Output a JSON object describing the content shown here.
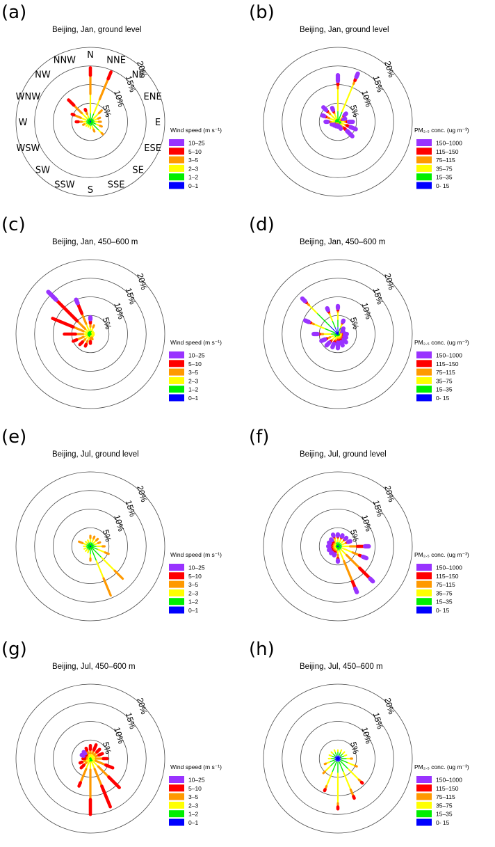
{
  "figure": {
    "compass_labels": [
      "N",
      "NNE",
      "NE",
      "ENE",
      "E",
      "ESE",
      "SE",
      "SSE",
      "S",
      "SSW",
      "SW",
      "WSW",
      "W",
      "WNW",
      "NW",
      "NNW"
    ],
    "ring_labels": [
      "5%",
      "10%",
      "15%",
      "20%"
    ]
  },
  "legends": {
    "wind": {
      "title": "Wind speed (m s⁻¹)",
      "items": [
        "10–25",
        "5–10",
        "3–5",
        "2–3",
        "1–2",
        "0–1"
      ]
    },
    "pm": {
      "title": "PM₂.₅ conc. (ug m⁻³)",
      "items": [
        "150–1000",
        "115–150",
        "75–115",
        "35–75",
        "15–35",
        "0- 15"
      ]
    },
    "colors": [
      "#9933ff",
      "#ff0000",
      "#ff9900",
      "#ffff00",
      "#00ee00",
      "#0000ff"
    ]
  },
  "chart_data": [
    {
      "type": "windrose",
      "label": "(a)",
      "title": "Beijing, Jan, ground level",
      "variable": "wind",
      "rlim": [
        0,
        20
      ],
      "show_compass": true,
      "directions": [
        "N",
        "NNE",
        "NE",
        "ENE",
        "E",
        "ESE",
        "SE",
        "SSE",
        "S",
        "SSW",
        "SW",
        "WSW",
        "W",
        "WNW",
        "NW",
        "NNW"
      ],
      "bins": [
        "0–1",
        "1–2",
        "2–3",
        "3–5",
        "5–10",
        "10–25"
      ],
      "frequencies_percent": [
        [
          0.5,
          2,
          5,
          5,
          2,
          0
        ],
        [
          0.5,
          2,
          4,
          6,
          2,
          0
        ],
        [
          0.3,
          1,
          2,
          1,
          0,
          0
        ],
        [
          0.3,
          1,
          1,
          0.5,
          0,
          0
        ],
        [
          0.3,
          1,
          1,
          0.5,
          0,
          0
        ],
        [
          0.3,
          1.5,
          1,
          0.5,
          0,
          0
        ],
        [
          0.3,
          3,
          1,
          0.5,
          0,
          0
        ],
        [
          0.3,
          1,
          1,
          0.5,
          0,
          0
        ],
        [
          0.3,
          1,
          0.5,
          0,
          0,
          0
        ],
        [
          0.3,
          0.8,
          0.4,
          0,
          0,
          0
        ],
        [
          0.3,
          0.8,
          0.5,
          0,
          0,
          0
        ],
        [
          0.3,
          1,
          0.5,
          0.3,
          0,
          0
        ],
        [
          0.3,
          1,
          1,
          1,
          0.5,
          0
        ],
        [
          0.3,
          1,
          1.5,
          2,
          0.5,
          0
        ],
        [
          0.3,
          1,
          2,
          3,
          2,
          0
        ],
        [
          0.3,
          1,
          1,
          1,
          0.3,
          0
        ]
      ]
    },
    {
      "type": "windrose",
      "label": "(b)",
      "title": "Beijing, Jan, ground level",
      "variable": "pm",
      "rlim": [
        0,
        20
      ],
      "show_compass": false,
      "directions": [
        "N",
        "NNE",
        "NE",
        "ENE",
        "E",
        "ESE",
        "SE",
        "SSE",
        "S",
        "SSW",
        "SW",
        "WSW",
        "W",
        "WNW",
        "NW",
        "NNW"
      ],
      "bins": [
        "0- 15",
        "15–35",
        "35–75",
        "75–115",
        "115–150",
        "150–1000"
      ],
      "frequencies_percent": [
        [
          0,
          3,
          6,
          1,
          1,
          1.5
        ],
        [
          0,
          3,
          8,
          1,
          1,
          1
        ],
        [
          0,
          1,
          1,
          0.3,
          0.3,
          0.5
        ],
        [
          0,
          0.5,
          0.5,
          0.3,
          0.3,
          0.5
        ],
        [
          0,
          1,
          1,
          0.5,
          0.5,
          1
        ],
        [
          0,
          1.2,
          1,
          0.5,
          1,
          1.5
        ],
        [
          0,
          1,
          1,
          0.5,
          1,
          2
        ],
        [
          0,
          0.5,
          0.5,
          0.3,
          0.2,
          0.5
        ],
        [
          0,
          0.3,
          0.3,
          0.2,
          0.2,
          0.3
        ],
        [
          0,
          0.3,
          0.3,
          0.2,
          0.2,
          0.3
        ],
        [
          0,
          0.3,
          0.3,
          0.3,
          0.2,
          0.3
        ],
        [
          0,
          0.5,
          0.3,
          0.3,
          0.2,
          0.5
        ],
        [
          0,
          1,
          1,
          0.5,
          0.3,
          0.5
        ],
        [
          0,
          1,
          1.5,
          1,
          0.5,
          0.5
        ],
        [
          0,
          1,
          2,
          1,
          0.5,
          1
        ],
        [
          0,
          1,
          1.5,
          0.5,
          0.5,
          0.5
        ]
      ]
    },
    {
      "type": "windrose",
      "label": "(c)",
      "title": "Beijing, Jan, 450–600 m",
      "variable": "wind",
      "rlim": [
        0,
        20
      ],
      "show_compass": false,
      "directions": [
        "N",
        "NNE",
        "NE",
        "ENE",
        "E",
        "ESE",
        "SE",
        "SSE",
        "S",
        "SSW",
        "SW",
        "WSW",
        "W",
        "WNW",
        "NW",
        "NNW"
      ],
      "bins": [
        "0–1",
        "1–2",
        "2–3",
        "3–5",
        "5–10",
        "10–25"
      ],
      "frequencies_percent": [
        [
          0,
          1,
          1,
          1,
          1,
          0.5
        ],
        [
          0,
          1,
          1,
          0.5,
          0,
          0
        ],
        [
          0,
          0.5,
          0.5,
          0,
          0,
          0
        ],
        [
          0,
          0.5,
          0.5,
          0,
          0,
          0
        ],
        [
          0,
          0.5,
          0.5,
          0,
          0,
          0
        ],
        [
          0,
          0.5,
          0.5,
          0,
          0,
          0
        ],
        [
          0,
          0.5,
          0.5,
          0,
          0,
          0
        ],
        [
          0,
          0.5,
          0.5,
          0.5,
          0,
          0
        ],
        [
          0,
          0.5,
          0.5,
          1,
          0.5,
          0
        ],
        [
          0,
          1,
          1,
          1,
          0.5,
          0
        ],
        [
          0,
          1,
          1,
          1,
          1,
          0
        ],
        [
          0,
          1,
          1,
          2,
          1,
          0
        ],
        [
          0,
          1,
          1,
          2,
          3,
          0
        ],
        [
          0,
          1,
          1,
          3,
          6,
          0
        ],
        [
          0,
          1,
          1,
          3,
          8,
          3
        ],
        [
          0,
          1,
          2,
          3,
          3,
          1
        ]
      ]
    },
    {
      "type": "windrose",
      "label": "(d)",
      "title": "Beijing, Jan, 450–600 m",
      "variable": "pm",
      "rlim": [
        0,
        20
      ],
      "show_compass": false,
      "directions": [
        "N",
        "NNE",
        "NE",
        "ENE",
        "E",
        "ESE",
        "SE",
        "SSE",
        "S",
        "SSW",
        "SW",
        "WSW",
        "W",
        "WNW",
        "NW",
        "NNW"
      ],
      "bins": [
        "0- 15",
        "15–35",
        "35–75",
        "75–115",
        "115–150",
        "150–1000"
      ],
      "frequencies_percent": [
        [
          2,
          2,
          2,
          0.5,
          0.5,
          0.5
        ],
        [
          1,
          1,
          1,
          0.3,
          0.3,
          0.3
        ],
        [
          0.3,
          0.5,
          0.5,
          0.3,
          0.2,
          0.3
        ],
        [
          0.3,
          0.3,
          0.3,
          0.2,
          0.2,
          0.3
        ],
        [
          0.3,
          0.5,
          0.5,
          0.3,
          0.3,
          0.5
        ],
        [
          0.3,
          0.5,
          0.5,
          0.3,
          0.3,
          0.5
        ],
        [
          0.3,
          0.5,
          0.5,
          0.5,
          0.3,
          1
        ],
        [
          0.3,
          0.5,
          0.5,
          0.5,
          0.5,
          1
        ],
        [
          0.3,
          0.5,
          0.5,
          0.5,
          0.5,
          1.5
        ],
        [
          0.3,
          0.5,
          1,
          0.5,
          0.5,
          1
        ],
        [
          0.3,
          1,
          1,
          0.5,
          0.5,
          1
        ],
        [
          0.3,
          1,
          1,
          1,
          0.5,
          1
        ],
        [
          0.5,
          1.5,
          2,
          1,
          0.5,
          1
        ],
        [
          1,
          3,
          3,
          1,
          0.5,
          1
        ],
        [
          3,
          5,
          3,
          1,
          0.5,
          1
        ],
        [
          2,
          2,
          2,
          0.5,
          0.5,
          0.5
        ]
      ]
    },
    {
      "type": "windrose",
      "label": "(e)",
      "title": "Beijing,      Jul, ground level",
      "variable": "wind",
      "rlim": [
        0,
        20
      ],
      "show_compass": false,
      "directions": [
        "N",
        "NNE",
        "NE",
        "ENE",
        "E",
        "ESE",
        "SE",
        "SSE",
        "S",
        "SSW",
        "SW",
        "WSW",
        "W",
        "WNW",
        "NW",
        "NNW"
      ],
      "bins": [
        "0–1",
        "1–2",
        "2–3",
        "3–5",
        "5–10",
        "10–25"
      ],
      "frequencies_percent": [
        [
          0.3,
          1,
          1,
          0.5,
          0,
          0
        ],
        [
          0.3,
          1,
          1,
          0.5,
          0,
          0
        ],
        [
          0.3,
          1,
          1,
          0.5,
          0,
          0
        ],
        [
          0.3,
          1,
          1,
          0.5,
          0,
          0
        ],
        [
          0.3,
          1.5,
          1.5,
          0.5,
          0,
          0
        ],
        [
          0.3,
          2,
          2,
          1,
          0,
          0
        ],
        [
          0.3,
          4,
          5,
          3,
          0,
          0
        ],
        [
          0.3,
          4,
          5,
          5,
          0,
          0
        ],
        [
          0.3,
          2,
          1,
          0.5,
          0,
          0
        ],
        [
          0.3,
          1,
          0.5,
          0,
          0,
          0
        ],
        [
          0.3,
          1,
          0.5,
          0,
          0,
          0
        ],
        [
          0.3,
          1,
          0.5,
          0,
          0,
          0
        ],
        [
          0.3,
          1,
          0.5,
          0,
          0,
          0
        ],
        [
          0.3,
          1,
          1,
          1,
          0,
          0
        ],
        [
          0.3,
          1,
          0.5,
          0,
          0,
          0
        ],
        [
          0.3,
          1,
          0.5,
          0,
          0,
          0
        ]
      ]
    },
    {
      "type": "windrose",
      "label": "(f)",
      "title": "Beijing, Jul, ground level",
      "variable": "pm",
      "rlim": [
        0,
        20
      ],
      "show_compass": false,
      "directions": [
        "N",
        "NNE",
        "NE",
        "ENE",
        "E",
        "ESE",
        "SE",
        "SSE",
        "S",
        "SSW",
        "SW",
        "WSW",
        "W",
        "WNW",
        "NW",
        "NNW"
      ],
      "bins": [
        "0- 15",
        "15–35",
        "35–75",
        "75–115",
        "115–150",
        "150–1000"
      ],
      "frequencies_percent": [
        [
          0.3,
          1,
          1,
          0.3,
          0.3,
          0.3
        ],
        [
          0.3,
          1,
          1,
          0.3,
          0.3,
          0.3
        ],
        [
          0.3,
          1,
          1,
          0.3,
          0.3,
          0.3
        ],
        [
          0.3,
          1,
          1,
          0.5,
          0.3,
          0.5
        ],
        [
          0.3,
          1,
          2,
          2,
          2,
          1
        ],
        [
          0.3,
          1,
          3,
          2,
          1,
          1
        ],
        [
          0.3,
          1,
          2,
          5,
          4,
          1
        ],
        [
          0.3,
          1,
          3,
          6,
          2,
          1
        ],
        [
          0.3,
          1,
          1,
          1,
          0.5,
          0.3
        ],
        [
          0.3,
          0.5,
          0.5,
          0.5,
          0.5,
          0.3
        ],
        [
          0.3,
          0.5,
          0.5,
          0.5,
          0.5,
          0.3
        ],
        [
          0.3,
          0.5,
          0.5,
          0.5,
          0.5,
          0.3
        ],
        [
          0.3,
          0.5,
          0.5,
          0.5,
          0.5,
          0.3
        ],
        [
          0.3,
          0.5,
          0.5,
          0.5,
          0.5,
          0.3
        ],
        [
          0.3,
          0.5,
          0.5,
          0.5,
          0.5,
          0.3
        ],
        [
          0.3,
          1,
          1,
          0.5,
          0.3,
          0.3
        ]
      ]
    },
    {
      "type": "windrose",
      "label": "(g)",
      "title": "Beijing, Jul, 450–600 m",
      "variable": "wind",
      "rlim": [
        0,
        20
      ],
      "show_compass": false,
      "directions": [
        "N",
        "NNE",
        "NE",
        "ENE",
        "E",
        "ESE",
        "SE",
        "SSE",
        "S",
        "SSW",
        "SW",
        "WSW",
        "W",
        "WNW",
        "NW",
        "NNW"
      ],
      "bins": [
        "0–1",
        "1–2",
        "2–3",
        "3–5",
        "5–10",
        "10–25"
      ],
      "frequencies_percent": [
        [
          0,
          0.5,
          1,
          1,
          1,
          0
        ],
        [
          0,
          0.5,
          1,
          1,
          1.5,
          0
        ],
        [
          0,
          0.5,
          1,
          1,
          1,
          0
        ],
        [
          0,
          0.5,
          1,
          1,
          1,
          0
        ],
        [
          0,
          0.5,
          1,
          2,
          1,
          0
        ],
        [
          0,
          0.5,
          1,
          3,
          2,
          0
        ],
        [
          0,
          1,
          2,
          4,
          4,
          0
        ],
        [
          0,
          1,
          2,
          5,
          6,
          0
        ],
        [
          0,
          1,
          2,
          8,
          4,
          0
        ],
        [
          0,
          1,
          2,
          4,
          1,
          0
        ],
        [
          0,
          0.5,
          1,
          1,
          1,
          0
        ],
        [
          0,
          0.5,
          1,
          1,
          0.5,
          0
        ],
        [
          0,
          0.5,
          0.5,
          0.5,
          0.5,
          0
        ],
        [
          0,
          0.5,
          0.5,
          0.5,
          0.5,
          0.5
        ],
        [
          0,
          0.5,
          0.5,
          0.5,
          0.5,
          0.5
        ],
        [
          0,
          0.5,
          1,
          1,
          0.5,
          0
        ]
      ]
    },
    {
      "type": "windrose",
      "label": "(h)",
      "title": "Beijing, Jul, 450–600 m",
      "variable": "pm",
      "rlim": [
        0,
        20
      ],
      "show_compass": false,
      "directions": [
        "N",
        "NNE",
        "NE",
        "ENE",
        "E",
        "ESE",
        "SE",
        "SSE",
        "S",
        "SSW",
        "SW",
        "WSW",
        "W",
        "WNW",
        "NW",
        "NNW"
      ],
      "bins": [
        "0- 15",
        "15–35",
        "35–75",
        "75–115",
        "115–150",
        "150–1000"
      ],
      "frequencies_percent": [
        [
          1,
          1,
          0.3,
          0,
          0,
          0
        ],
        [
          1,
          1,
          0.5,
          0,
          0,
          0
        ],
        [
          1,
          1,
          0.5,
          0,
          0,
          0
        ],
        [
          1,
          1,
          0.5,
          0,
          0,
          0
        ],
        [
          1,
          1.5,
          1,
          0.3,
          0,
          0
        ],
        [
          1,
          2,
          2,
          0.5,
          0,
          0
        ],
        [
          1,
          3,
          4,
          1,
          0.3,
          0
        ],
        [
          1,
          3,
          5,
          2,
          0.5,
          0
        ],
        [
          1,
          3,
          8,
          1,
          0.5,
          0
        ],
        [
          1,
          3,
          4,
          1,
          0.3,
          0
        ],
        [
          1,
          2,
          2,
          0.5,
          0,
          0
        ],
        [
          1,
          1.5,
          1,
          0.3,
          0,
          0
        ],
        [
          1,
          1,
          0.5,
          0,
          0,
          0
        ],
        [
          1,
          1,
          0.5,
          0,
          0,
          0
        ],
        [
          1,
          1,
          0.5,
          0,
          0,
          0
        ],
        [
          1,
          1,
          0.5,
          0,
          0,
          0
        ]
      ]
    }
  ]
}
